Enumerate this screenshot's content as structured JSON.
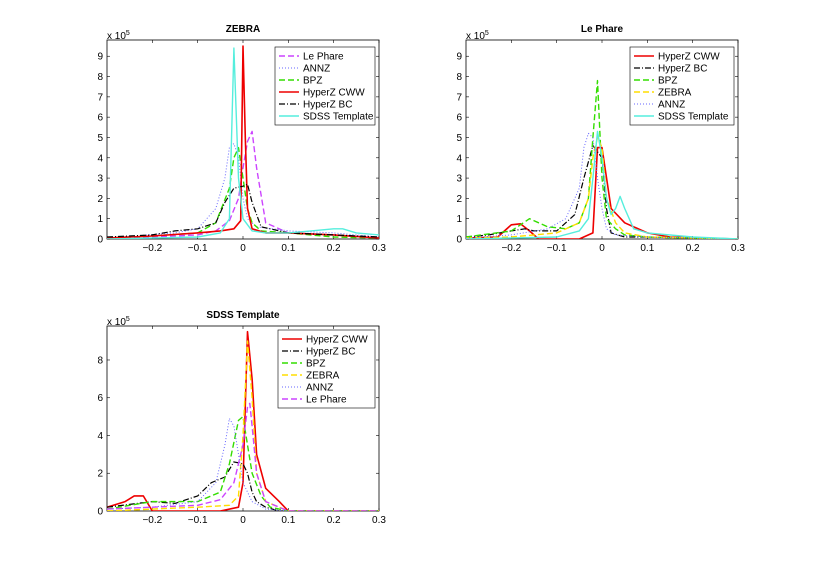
{
  "chart_data": [
    {
      "type": "line",
      "title": "ZEBRA",
      "scale_base": "x 10",
      "scale_exp": "5",
      "xlim": [
        -0.3,
        0.3
      ],
      "ylim": [
        0,
        9.8
      ],
      "xticks": [
        -0.2,
        -0.1,
        0,
        0.1,
        0.2,
        0.3
      ],
      "xtick_labels": [
        "−0.2",
        "−0.1",
        "0",
        "0.1",
        "0.2",
        "0.3"
      ],
      "yticks": [
        0,
        1,
        2,
        3,
        4,
        5,
        6,
        7,
        8,
        9
      ],
      "ytick_labels": [
        "0",
        "1",
        "2",
        "3",
        "4",
        "5",
        "6",
        "7",
        "8",
        "9"
      ],
      "legend_position": "top-right",
      "series": [
        {
          "name": "Le Phare",
          "color": "#cc44ff",
          "dash": "6,3",
          "width": 1.4,
          "x": [
            -0.3,
            -0.2,
            -0.1,
            -0.06,
            -0.03,
            -0.01,
            0.0,
            0.01,
            0.02,
            0.03,
            0.05,
            0.1,
            0.2,
            0.3
          ],
          "y": [
            0.05,
            0.1,
            0.2,
            0.4,
            0.9,
            2.0,
            3.5,
            4.8,
            5.3,
            3.5,
            0.8,
            0.3,
            0.2,
            0.05
          ]
        },
        {
          "name": "ANNZ",
          "color": "#6666ff",
          "dash": "1,2",
          "width": 1.0,
          "x": [
            -0.3,
            -0.15,
            -0.1,
            -0.06,
            -0.04,
            -0.03,
            -0.02,
            -0.01,
            0.0,
            0.01,
            0.03,
            0.1,
            0.2,
            0.3
          ],
          "y": [
            0.05,
            0.3,
            0.5,
            1.5,
            3.0,
            4.5,
            4.7,
            4.0,
            2.0,
            1.0,
            0.6,
            0.4,
            0.3,
            0.1
          ]
        },
        {
          "name": "BPZ",
          "color": "#33dd00",
          "dash": "6,3",
          "width": 1.4,
          "x": [
            -0.3,
            -0.2,
            -0.1,
            -0.06,
            -0.03,
            -0.02,
            -0.01,
            0.0,
            0.01,
            0.02,
            0.04,
            0.1,
            0.2,
            0.3
          ],
          "y": [
            0.05,
            0.15,
            0.3,
            0.8,
            2.5,
            4.0,
            4.5,
            3.0,
            1.5,
            0.8,
            0.4,
            0.3,
            0.1,
            0.05
          ]
        },
        {
          "name": "HyperZ CWW",
          "color": "#ee0000",
          "dash": "",
          "width": 1.6,
          "x": [
            -0.3,
            -0.2,
            -0.1,
            -0.05,
            -0.02,
            -0.005,
            0.0,
            0.005,
            0.01,
            0.02,
            0.05,
            0.1,
            0.2,
            0.3
          ],
          "y": [
            0.05,
            0.15,
            0.3,
            0.4,
            0.5,
            0.9,
            9.5,
            5.0,
            1.5,
            0.5,
            0.3,
            0.3,
            0.2,
            0.05
          ]
        },
        {
          "name": "HyperZ BC",
          "color": "#000000",
          "dash": "6,2,1,2",
          "width": 1.2,
          "x": [
            -0.3,
            -0.2,
            -0.15,
            -0.1,
            -0.06,
            -0.04,
            -0.02,
            0.0,
            0.01,
            0.02,
            0.04,
            0.1,
            0.2,
            0.3
          ],
          "y": [
            0.1,
            0.2,
            0.4,
            0.5,
            0.8,
            1.8,
            2.5,
            2.6,
            2.7,
            1.8,
            0.6,
            0.3,
            0.2,
            0.1
          ]
        },
        {
          "name": "SDSS Template",
          "color": "#55eedd",
          "dash": "",
          "width": 1.4,
          "x": [
            -0.3,
            -0.1,
            -0.05,
            -0.03,
            -0.02,
            -0.01,
            0.0,
            0.02,
            0.05,
            0.1,
            0.15,
            0.2,
            0.22,
            0.25,
            0.3
          ],
          "y": [
            0.0,
            0.1,
            0.3,
            1.0,
            9.4,
            3.0,
            1.0,
            0.4,
            0.3,
            0.3,
            0.4,
            0.5,
            0.5,
            0.3,
            0.2
          ]
        }
      ]
    },
    {
      "type": "line",
      "title": "Le Phare",
      "scale_base": "x 10",
      "scale_exp": "5",
      "xlim": [
        -0.3,
        0.3
      ],
      "ylim": [
        0,
        9.8
      ],
      "xticks": [
        -0.2,
        -0.1,
        0,
        0.1,
        0.2,
        0.3
      ],
      "xtick_labels": [
        "−0.2",
        "−0.1",
        "0",
        "0.1",
        "0.2",
        "0.3"
      ],
      "yticks": [
        0,
        1,
        2,
        3,
        4,
        5,
        6,
        7,
        8,
        9
      ],
      "ytick_labels": [
        "0",
        "1",
        "2",
        "3",
        "4",
        "5",
        "6",
        "7",
        "8",
        "9"
      ],
      "legend_position": "top-right",
      "series": [
        {
          "name": "HyperZ CWW",
          "color": "#ee0000",
          "dash": "",
          "width": 1.6,
          "x": [
            -0.3,
            -0.23,
            -0.2,
            -0.18,
            -0.16,
            -0.14,
            -0.1,
            -0.05,
            -0.02,
            -0.01,
            0.0,
            0.02,
            0.05,
            0.1,
            0.15,
            0.3
          ],
          "y": [
            0.05,
            0.1,
            0.7,
            0.75,
            0.4,
            0.0,
            0.0,
            0.0,
            0.3,
            4.5,
            4.5,
            1.5,
            0.8,
            0.3,
            0.1,
            0.0
          ]
        },
        {
          "name": "HyperZ BC",
          "color": "#000000",
          "dash": "6,2,1,2",
          "width": 1.2,
          "x": [
            -0.3,
            -0.25,
            -0.2,
            -0.17,
            -0.15,
            -0.1,
            -0.06,
            -0.04,
            -0.02,
            0.0,
            0.01,
            0.02,
            0.05,
            0.1,
            0.3
          ],
          "y": [
            0.1,
            0.2,
            0.4,
            0.5,
            0.4,
            0.4,
            1.2,
            3.0,
            4.6,
            4.0,
            1.5,
            0.3,
            0.1,
            0.1,
            0.0
          ]
        },
        {
          "name": "BPZ",
          "color": "#33dd00",
          "dash": "6,3",
          "width": 1.4,
          "x": [
            -0.3,
            -0.2,
            -0.16,
            -0.12,
            -0.08,
            -0.05,
            -0.03,
            -0.02,
            -0.01,
            0.0,
            0.01,
            0.03,
            0.05,
            0.1,
            0.3
          ],
          "y": [
            0.1,
            0.4,
            1.0,
            0.6,
            0.5,
            0.8,
            2.0,
            5.0,
            7.8,
            3.0,
            1.0,
            0.5,
            0.2,
            0.1,
            0.0
          ]
        },
        {
          "name": "ZEBRA",
          "color": "#ffdd00",
          "dash": "6,3",
          "width": 1.4,
          "x": [
            -0.3,
            -0.2,
            -0.1,
            -0.05,
            -0.03,
            -0.02,
            -0.01,
            0.0,
            0.01,
            0.03,
            0.05,
            0.1,
            0.3
          ],
          "y": [
            0.05,
            0.1,
            0.3,
            0.8,
            2.0,
            4.0,
            5.0,
            4.5,
            2.0,
            0.8,
            0.3,
            0.1,
            0.0
          ]
        },
        {
          "name": "ANNZ",
          "color": "#6666ff",
          "dash": "1,2",
          "width": 1.0,
          "x": [
            -0.3,
            -0.2,
            -0.12,
            -0.08,
            -0.05,
            -0.04,
            -0.03,
            -0.02,
            -0.01,
            0.0,
            0.01,
            0.03,
            0.1,
            0.3
          ],
          "y": [
            0.05,
            0.2,
            0.5,
            1.0,
            2.5,
            4.5,
            5.2,
            5.0,
            3.0,
            1.5,
            0.5,
            0.2,
            0.1,
            0.0
          ]
        },
        {
          "name": "SDSS Template",
          "color": "#55eedd",
          "dash": "",
          "width": 1.4,
          "x": [
            -0.3,
            -0.1,
            -0.05,
            -0.03,
            -0.02,
            -0.01,
            0.0,
            0.01,
            0.02,
            0.03,
            0.04,
            0.05,
            0.07,
            0.1,
            0.2,
            0.3
          ],
          "y": [
            0.0,
            0.1,
            0.4,
            1.0,
            3.0,
            5.3,
            4.0,
            2.0,
            1.2,
            1.5,
            2.1,
            1.5,
            0.5,
            0.3,
            0.1,
            0.0
          ]
        }
      ]
    },
    {
      "type": "line",
      "title": "SDSS Template",
      "scale_base": "x 10",
      "scale_exp": "5",
      "xlim": [
        -0.3,
        0.3
      ],
      "ylim": [
        0,
        9.8
      ],
      "xticks": [
        -0.2,
        -0.1,
        0,
        0.1,
        0.2,
        0.3
      ],
      "xtick_labels": [
        "−0.2",
        "−0.1",
        "0",
        "0.1",
        "0.2",
        "0.3"
      ],
      "yticks": [
        0,
        2,
        4,
        6,
        8
      ],
      "ytick_labels": [
        "0",
        "2",
        "4",
        "6",
        "8"
      ],
      "legend_position": "top-right",
      "series": [
        {
          "name": "HyperZ CWW",
          "color": "#ee0000",
          "dash": "",
          "width": 1.6,
          "x": [
            -0.3,
            -0.26,
            -0.24,
            -0.22,
            -0.2,
            -0.15,
            -0.05,
            -0.01,
            0.0,
            0.01,
            0.02,
            0.03,
            0.05,
            0.08,
            0.1,
            0.3
          ],
          "y": [
            0.2,
            0.5,
            0.8,
            0.8,
            0.0,
            0.0,
            0.0,
            0.2,
            1.5,
            9.5,
            7.0,
            3.0,
            1.2,
            0.5,
            0.0,
            0.0
          ]
        },
        {
          "name": "HyperZ BC",
          "color": "#000000",
          "dash": "6,2,1,2",
          "width": 1.2,
          "x": [
            -0.3,
            -0.2,
            -0.15,
            -0.1,
            -0.07,
            -0.04,
            -0.02,
            0.0,
            0.01,
            0.02,
            0.03,
            0.05,
            0.08,
            0.3
          ],
          "y": [
            0.2,
            0.5,
            0.4,
            0.8,
            1.5,
            1.8,
            2.6,
            2.5,
            2.0,
            1.0,
            0.5,
            0.2,
            0.0,
            0.0
          ]
        },
        {
          "name": "BPZ",
          "color": "#33dd00",
          "dash": "6,3",
          "width": 1.4,
          "x": [
            -0.3,
            -0.2,
            -0.1,
            -0.05,
            -0.03,
            -0.01,
            0.0,
            0.01,
            0.02,
            0.04,
            0.06,
            0.1,
            0.3
          ],
          "y": [
            0.1,
            0.5,
            0.5,
            1.0,
            2.5,
            4.8,
            5.0,
            3.5,
            2.0,
            0.8,
            0.2,
            0.0,
            0.0
          ]
        },
        {
          "name": "ZEBRA",
          "color": "#ffdd00",
          "dash": "6,3",
          "width": 1.4,
          "x": [
            -0.3,
            -0.2,
            -0.1,
            -0.03,
            -0.01,
            0.0,
            0.01,
            0.02,
            0.03,
            0.05,
            0.1,
            0.3
          ],
          "y": [
            0.0,
            0.1,
            0.2,
            0.3,
            0.8,
            4.0,
            9.0,
            6.0,
            2.0,
            0.5,
            0.0,
            0.0
          ]
        },
        {
          "name": "ANNZ",
          "color": "#6666ff",
          "dash": "1,2",
          "width": 1.0,
          "x": [
            -0.3,
            -0.2,
            -0.1,
            -0.06,
            -0.04,
            -0.03,
            -0.02,
            -0.01,
            0.0,
            0.02,
            0.05,
            0.1,
            0.3
          ],
          "y": [
            0.1,
            0.2,
            0.5,
            1.5,
            3.5,
            4.9,
            4.5,
            3.0,
            1.5,
            0.5,
            0.1,
            0.0,
            0.0
          ]
        },
        {
          "name": "Le Phare",
          "color": "#cc44ff",
          "dash": "6,3",
          "width": 1.4,
          "x": [
            -0.3,
            -0.2,
            -0.1,
            -0.05,
            -0.02,
            0.0,
            0.01,
            0.015,
            0.02,
            0.03,
            0.05,
            0.1,
            0.3
          ],
          "y": [
            0.1,
            0.2,
            0.3,
            0.6,
            1.5,
            3.5,
            5.5,
            5.7,
            4.5,
            2.0,
            0.5,
            0.0,
            0.0
          ]
        }
      ]
    }
  ]
}
